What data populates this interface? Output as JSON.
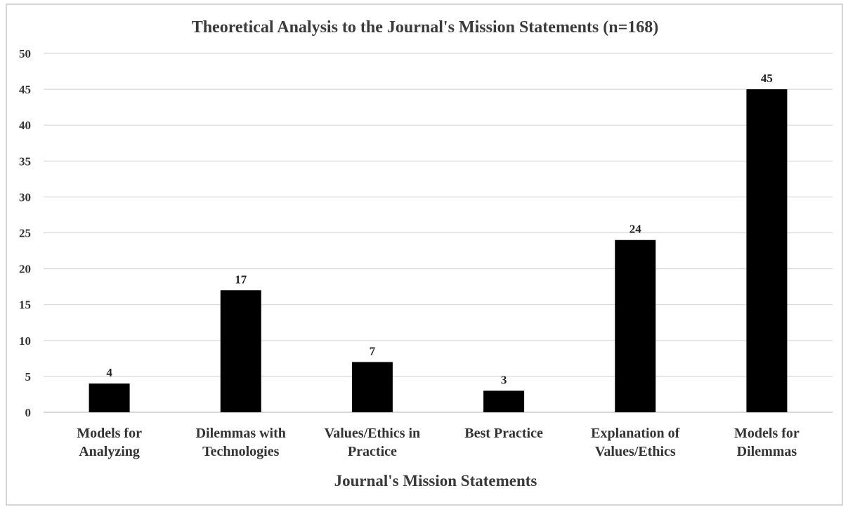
{
  "chart_data": {
    "type": "bar",
    "title": "Theoretical Analysis to the Journal's Mission Statements (n=168)",
    "xlabel": "Journal's Mission Statements",
    "ylabel": "",
    "categories": [
      [
        "Models for",
        "Analyzing"
      ],
      [
        "Dilemmas with",
        "Technologies"
      ],
      [
        "Values/Ethics in",
        "Practice"
      ],
      [
        "Best Practice"
      ],
      [
        "Explanation of",
        "Values/Ethics"
      ],
      [
        "Models for",
        "Dilemmas"
      ]
    ],
    "values": [
      4,
      17,
      7,
      3,
      24,
      45
    ],
    "data_labels": [
      "4",
      "17",
      "7",
      "3",
      "24",
      "45"
    ],
    "ylim": [
      0,
      50
    ],
    "yticks": [
      0,
      5,
      10,
      15,
      20,
      25,
      30,
      35,
      40,
      45,
      50
    ],
    "grid": true,
    "legend": "none",
    "colors": {
      "bar": "#000000",
      "grid": "#d9d9d9",
      "border": "#c8c8c8",
      "text": "#333333"
    }
  }
}
